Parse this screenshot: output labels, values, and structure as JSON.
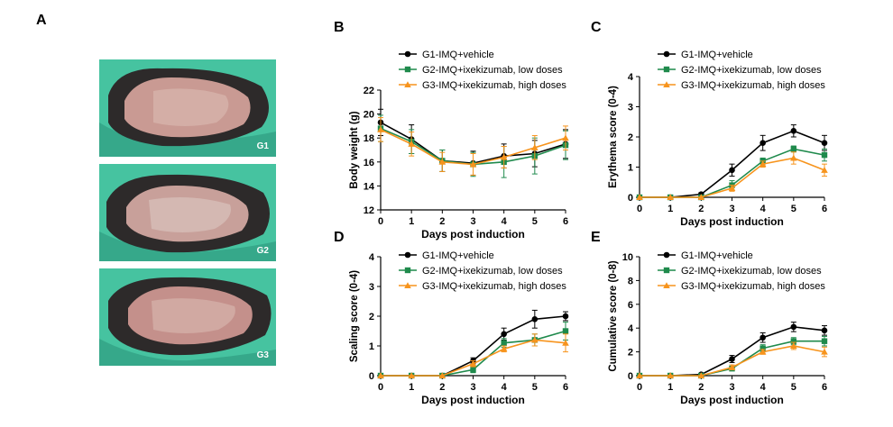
{
  "panels": {
    "A": "A",
    "B": "B",
    "C": "C",
    "D": "D",
    "E": "E"
  },
  "photos": [
    {
      "label": "G1"
    },
    {
      "label": "G2"
    },
    {
      "label": "G3"
    }
  ],
  "colors": {
    "G1": "#000000",
    "G2": "#1f8a4c",
    "G3": "#f7941d",
    "glove": "#3fbf9a",
    "skin": "#c99a93"
  },
  "chart_data": [
    {
      "panel": "B",
      "type": "line",
      "xlabel": "Days post induction",
      "ylabel": "Body weight (g)",
      "x": [
        0,
        1,
        2,
        3,
        4,
        5,
        6
      ],
      "xlim": [
        0,
        6
      ],
      "ylim": [
        12,
        22
      ],
      "yticks": [
        12,
        14,
        16,
        18,
        20,
        22
      ],
      "legend": "top",
      "series": [
        {
          "name": "G1-IMQ+vehicle",
          "values": [
            19.3,
            17.9,
            16.1,
            15.9,
            16.5,
            16.7,
            17.5
          ],
          "err": [
            1.1,
            1.2,
            0.9,
            1.0,
            1.0,
            1.1,
            1.2
          ]
        },
        {
          "name": "G2-IMQ+ixekizumab, low doses",
          "values": [
            18.8,
            17.7,
            16.1,
            15.8,
            16.0,
            16.5,
            17.4
          ],
          "err": [
            1.1,
            1.0,
            0.9,
            1.0,
            1.3,
            1.5,
            1.2
          ]
        },
        {
          "name": "G3-IMQ+ixekizumab, high doses",
          "values": [
            18.7,
            17.5,
            16.0,
            15.8,
            16.4,
            17.2,
            18.0
          ],
          "err": [
            1.0,
            1.0,
            0.8,
            0.9,
            0.9,
            1.0,
            1.0
          ]
        }
      ]
    },
    {
      "panel": "C",
      "type": "line",
      "xlabel": "Days post induction",
      "ylabel": "Erythema score (0-4)",
      "x": [
        0,
        1,
        2,
        3,
        4,
        5,
        6
      ],
      "xlim": [
        0,
        6
      ],
      "ylim": [
        0,
        4
      ],
      "yticks": [
        0,
        1,
        2,
        3,
        4
      ],
      "legend": "top",
      "series": [
        {
          "name": "G1-IMQ+vehicle",
          "values": [
            0,
            0,
            0.1,
            0.9,
            1.8,
            2.2,
            1.8
          ],
          "err": [
            0,
            0,
            0.05,
            0.2,
            0.25,
            0.2,
            0.25
          ]
        },
        {
          "name": "G2-IMQ+ixekizumab, low doses",
          "values": [
            0,
            0,
            0,
            0.4,
            1.2,
            1.6,
            1.4
          ],
          "err": [
            0,
            0,
            0,
            0.15,
            0.1,
            0.1,
            0.2
          ]
        },
        {
          "name": "G3-IMQ+ixekizumab, high doses",
          "values": [
            0,
            0,
            0,
            0.3,
            1.1,
            1.3,
            0.9
          ],
          "err": [
            0,
            0,
            0,
            0.1,
            0.1,
            0.2,
            0.2
          ]
        }
      ]
    },
    {
      "panel": "D",
      "type": "line",
      "xlabel": "Days post induction",
      "ylabel": "Scaling score (0-4)",
      "x": [
        0,
        1,
        2,
        3,
        4,
        5,
        6
      ],
      "xlim": [
        0,
        6
      ],
      "ylim": [
        0,
        4
      ],
      "yticks": [
        0,
        1,
        2,
        3,
        4
      ],
      "legend": "top",
      "series": [
        {
          "name": "G1-IMQ+vehicle",
          "values": [
            0,
            0,
            0,
            0.5,
            1.4,
            1.9,
            2.0
          ],
          "err": [
            0,
            0,
            0,
            0.1,
            0.2,
            0.3,
            0.15
          ]
        },
        {
          "name": "G2-IMQ+ixekizumab, low doses",
          "values": [
            0,
            0,
            0,
            0.2,
            1.1,
            1.2,
            1.5
          ],
          "err": [
            0,
            0,
            0,
            0.1,
            0.15,
            0.2,
            0.3
          ]
        },
        {
          "name": "G3-IMQ+ixekizumab, high doses",
          "values": [
            0,
            0,
            0,
            0.4,
            0.9,
            1.2,
            1.1
          ],
          "err": [
            0,
            0,
            0,
            0.1,
            0.1,
            0.2,
            0.3
          ]
        }
      ]
    },
    {
      "panel": "E",
      "type": "line",
      "xlabel": "Days post induction",
      "ylabel": "Cumulative score (0-8)",
      "x": [
        0,
        1,
        2,
        3,
        4,
        5,
        6
      ],
      "xlim": [
        0,
        6
      ],
      "ylim": [
        0,
        10
      ],
      "yticks": [
        0,
        2,
        4,
        6,
        8,
        10
      ],
      "legend": "top",
      "series": [
        {
          "name": "G1-IMQ+vehicle",
          "values": [
            0,
            0,
            0.1,
            1.4,
            3.2,
            4.1,
            3.8
          ],
          "err": [
            0,
            0,
            0.05,
            0.3,
            0.4,
            0.4,
            0.4
          ]
        },
        {
          "name": "G2-IMQ+ixekizumab, low doses",
          "values": [
            0,
            0,
            0,
            0.6,
            2.3,
            2.9,
            2.9
          ],
          "err": [
            0,
            0,
            0,
            0.2,
            0.3,
            0.3,
            0.4
          ]
        },
        {
          "name": "G3-IMQ+ixekizumab, high doses",
          "values": [
            0,
            0,
            0,
            0.7,
            2.0,
            2.5,
            2.0
          ],
          "err": [
            0,
            0,
            0,
            0.2,
            0.2,
            0.3,
            0.4
          ]
        }
      ]
    }
  ]
}
